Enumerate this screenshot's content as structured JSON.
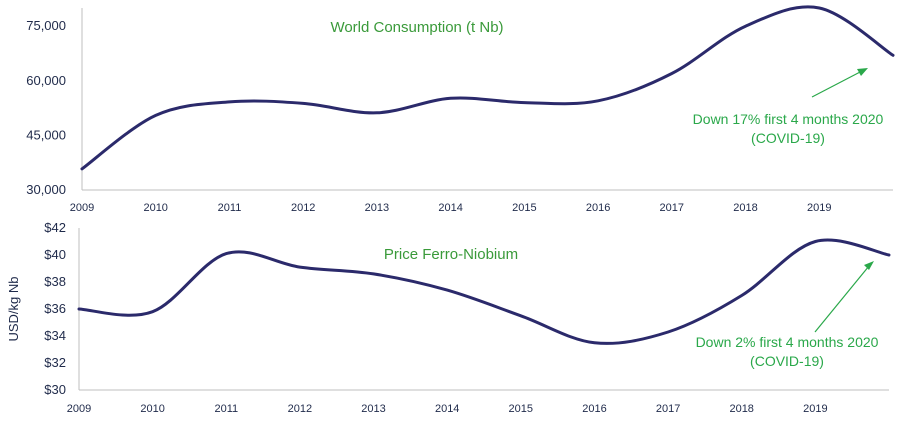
{
  "chart_data": [
    {
      "type": "line",
      "title": "World Consumption (t Nb)",
      "xlabel": "",
      "ylabel": "",
      "x": [
        2009,
        2010,
        2011,
        2012,
        2013,
        2014,
        2015,
        2016,
        2017,
        2018,
        2019,
        2020
      ],
      "xlim": [
        2009,
        2020
      ],
      "ylim": [
        30000,
        80000
      ],
      "x_ticks": [
        "2009",
        "2010",
        "2011",
        "2012",
        "2013",
        "2014",
        "2015",
        "2016",
        "2017",
        "2018",
        "2019"
      ],
      "y_ticks": [
        "30,000",
        "45,000",
        "60,000",
        "75,000"
      ],
      "y_tick_values": [
        30000,
        45000,
        60000,
        75000
      ],
      "series": [
        {
          "values": [
            35800,
            50500,
            54200,
            53800,
            51200,
            55200,
            54000,
            54500,
            62000,
            75000,
            80000,
            67000
          ]
        }
      ],
      "annotation": {
        "line1": "Down 17% first 4 months 2020",
        "line2": "(COVID-19)"
      },
      "grid": false,
      "color": "#2b2a6b"
    },
    {
      "type": "line",
      "title": "Price Ferro-Niobium",
      "xlabel": "",
      "ylabel": "USD/kg Nb",
      "x": [
        2009,
        2010,
        2011,
        2012,
        2013,
        2014,
        2015,
        2016,
        2017,
        2018,
        2019,
        2020
      ],
      "xlim": [
        2009,
        2020
      ],
      "ylim": [
        30,
        42
      ],
      "x_ticks": [
        "2009",
        "2010",
        "2011",
        "2012",
        "2013",
        "2014",
        "2015",
        "2016",
        "2017",
        "2018",
        "2019"
      ],
      "y_ticks": [
        "$30",
        "$32",
        "$34",
        "$36",
        "$38",
        "$40",
        "$42"
      ],
      "y_tick_values": [
        30,
        32,
        34,
        36,
        38,
        40,
        42
      ],
      "series": [
        {
          "values": [
            36.0,
            35.8,
            40.1,
            39.1,
            38.6,
            37.4,
            35.5,
            33.5,
            34.3,
            37.0,
            41.0,
            40.0
          ]
        }
      ],
      "annotation": {
        "line1": "Down 2% first 4 months 2020",
        "line2": "(COVID-19)"
      },
      "grid": false,
      "color": "#2b2a6b"
    }
  ]
}
